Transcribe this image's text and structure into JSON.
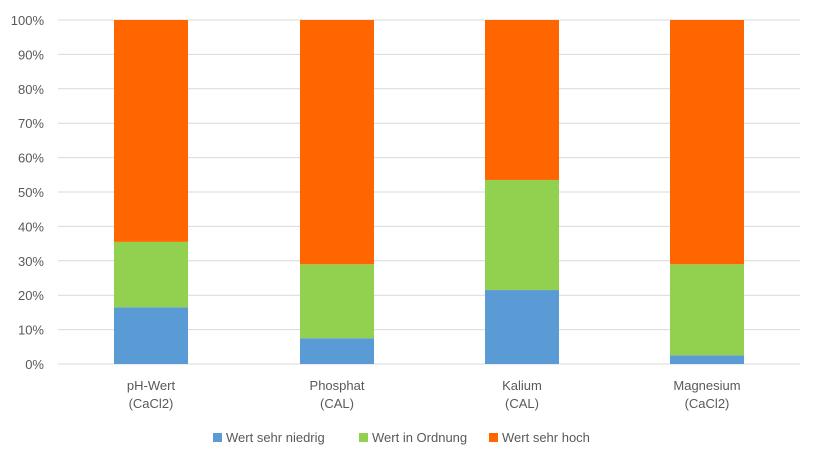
{
  "chart_data": {
    "type": "bar",
    "stacked": "percent",
    "categories": [
      {
        "line1": "pH-Wert",
        "line2": "(CaCl2)"
      },
      {
        "line1": "Phosphat",
        "line2": "(CAL)"
      },
      {
        "line1": "Kalium",
        "line2": "(CAL)"
      },
      {
        "line1": "Magnesium",
        "line2": "(CaCl2)"
      }
    ],
    "series": [
      {
        "name": "Wert sehr niedrig",
        "color": "#5B9BD5",
        "values": [
          16.5,
          7.5,
          21.5,
          2.5
        ]
      },
      {
        "name": "Wert in Ordnung",
        "color": "#92D050",
        "values": [
          19,
          21.5,
          32,
          26.5
        ]
      },
      {
        "name": "Wert sehr hoch",
        "color": "#FF6600",
        "values": [
          64.5,
          71,
          46.5,
          71
        ]
      }
    ],
    "y_ticks": [
      "0%",
      "10%",
      "20%",
      "30%",
      "40%",
      "50%",
      "60%",
      "70%",
      "80%",
      "90%",
      "100%"
    ],
    "ylim": [
      0,
      100
    ],
    "grid": true,
    "legend": "bottom"
  }
}
